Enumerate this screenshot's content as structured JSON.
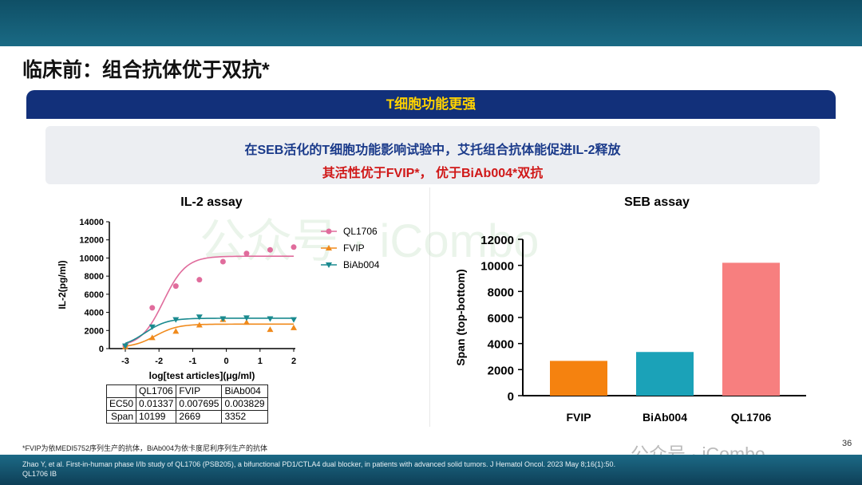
{
  "slide": {
    "title": "临床前：组合抗体优于双抗*",
    "section_header": "T细胞功能更强",
    "summary_line1": "在SEB活化的T细胞功能影响试验中，艾托组合抗体能促进IL-2释放",
    "summary_line2": "其活性优于FVIP*， 优于BiAb004*双抗",
    "footnote": "*FVIP为依MEDI5752序列生产的抗体，BiAb004为依卡度尼利序列生产的抗体",
    "reference": "Zhao Y, et al. First-in-human phase I/Ib study of QL1706 (PSB205), a bifunctional PD1/CTLA4 dual blocker, in patients with advanced solid tumors. J Hematol Oncol. 2023 May 8;16(1):50.",
    "reference2": "QL1706 IB",
    "page_number": "36",
    "watermark": "公众号 · iCombo"
  },
  "colors": {
    "QL1706_line": "#e06c9c",
    "FVIP": "#f08a1c",
    "BiAb004": "#1a8a8f",
    "bar_FVIP": "#f5820f",
    "bar_BiAb004": "#1ba2b8",
    "bar_QL1706": "#f77f7f",
    "header": "#12307a"
  },
  "ec_table": {
    "headers": [
      "",
      "QL1706",
      "FVIP",
      "BiAb004"
    ],
    "rows": [
      [
        "EC50",
        "0.01337",
        "0.007695",
        "0.003829"
      ],
      [
        "Span",
        "10199",
        "2669",
        "3352"
      ]
    ]
  },
  "chart_data": [
    {
      "type": "line",
      "title": "IL-2 assay",
      "xlabel": "log[test articles](μg/ml)",
      "ylabel": "IL-2(pg/ml)",
      "xlim": [
        -3,
        2
      ],
      "ylim": [
        0,
        14000
      ],
      "xticks": [
        "-3",
        "-2",
        "-1",
        "0",
        "1",
        "2"
      ],
      "yticks": [
        "0",
        "2000",
        "4000",
        "6000",
        "8000",
        "10000",
        "12000",
        "14000"
      ],
      "legend": "top-right",
      "grid": false,
      "x": [
        -3,
        -2.2,
        -1.5,
        -0.8,
        -0.1,
        0.6,
        1.3,
        2
      ],
      "series": [
        {
          "name": "QL1706",
          "marker": "circle",
          "values": [
            300,
            4500,
            6900,
            7600,
            9600,
            10500,
            10900,
            11200
          ],
          "ec50_log": -1.87,
          "bottom": 200,
          "top": 10200
        },
        {
          "name": "FVIP",
          "marker": "triangle-up",
          "values": [
            200,
            1200,
            1900,
            2600,
            3200,
            2900,
            2100,
            2300
          ],
          "ec50_log": -2.11,
          "bottom": 100,
          "top": 2700
        },
        {
          "name": "BiAb004",
          "marker": "triangle-down",
          "values": [
            300,
            2400,
            3200,
            3500,
            3300,
            3400,
            3300,
            3200
          ],
          "ec50_log": -2.42,
          "bottom": 100,
          "top": 3350
        }
      ]
    },
    {
      "type": "bar",
      "title": "SEB assay",
      "ylabel": "Span (top-bottom)",
      "ylim": [
        0,
        12000
      ],
      "yticks": [
        "0",
        "2000",
        "4000",
        "6000",
        "8000",
        "10000",
        "12000"
      ],
      "categories": [
        "FVIP",
        "BiAb004",
        "QL1706"
      ],
      "values": [
        2669,
        3352,
        10199
      ]
    }
  ]
}
